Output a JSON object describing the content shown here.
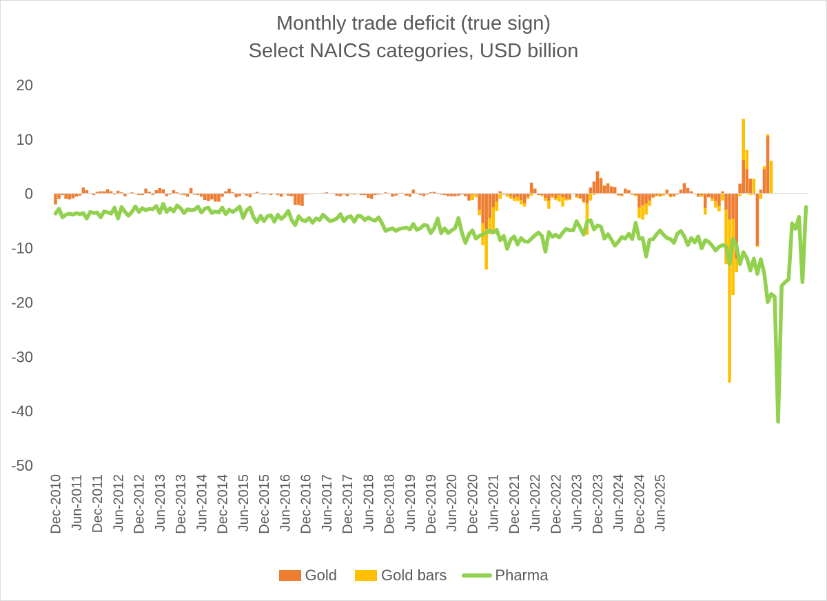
{
  "chart_data": {
    "type": "bar+line",
    "title": "Monthly trade deficit (true sign)",
    "subtitle": "Select NAICS categories, USD billion",
    "ylim": [
      -50,
      20
    ],
    "yticks": [
      20,
      10,
      0,
      -10,
      -20,
      -30,
      -40,
      -50
    ],
    "start_month": "Dec-2010",
    "x_tick_labels": [
      "Dec-2010",
      "Jun-2011",
      "Dec-2011",
      "Jun-2012",
      "Dec-2012",
      "Jun-2013",
      "Dec-2013",
      "Jun-2014",
      "Dec-2014",
      "Jun-2015",
      "Dec-2015",
      "Jun-2016",
      "Dec-2016",
      "Jun-2017",
      "Dec-2017",
      "Jun-2018",
      "Dec-2018",
      "Jun-2019",
      "Dec-2019",
      "Jun-2020",
      "Dec-2020",
      "Jun-2021",
      "Dec-2021",
      "Jun-2022",
      "Dec-2022",
      "Jun-2023",
      "Dec-2023",
      "Jun-2024",
      "Dec-2024",
      "Jun-2025"
    ],
    "legend": [
      {
        "name": "Gold",
        "color": "#ed7d31",
        "kind": "bar"
      },
      {
        "name": "Gold bars",
        "color": "#ffc000",
        "kind": "bar"
      },
      {
        "name": "Pharma",
        "color": "#92d050",
        "kind": "line"
      }
    ],
    "series": [
      {
        "name": "Gold",
        "values": [
          -2,
          -1,
          -0.3,
          -1,
          -1.1,
          -0.9,
          -0.6,
          -0.4,
          1.1,
          0.6,
          -0.1,
          -0.3,
          0.3,
          0.4,
          0.4,
          0.8,
          0.4,
          -0.2,
          0.5,
          0.2,
          -0.5,
          -0.1,
          0.2,
          -0.1,
          -0.3,
          -0.3,
          0.9,
          0.3,
          -0.3,
          0.6,
          1,
          0.8,
          -0.5,
          -0.2,
          0.6,
          0.2,
          -0.2,
          -0.3,
          -0.6,
          1,
          -0.2,
          -0.3,
          -0.6,
          -1.2,
          -1.4,
          -1.1,
          -1.5,
          -1.5,
          -0.6,
          0.4,
          0.9,
          0.2,
          -0.7,
          -0.5,
          0.1,
          -0.4,
          -0.7,
          0.1,
          0.3,
          -0.1,
          -0.2,
          -0.1,
          -0.3,
          -0.1,
          -0.3,
          -0.6,
          -0.1,
          -0.4,
          -0.5,
          -2.1,
          -2.1,
          -2.3,
          -0.2,
          -0.1,
          -0.1,
          0,
          0,
          0.1,
          0.2,
          0,
          -0.1,
          -0.4,
          -0.5,
          -0.2,
          -0.5,
          0.1,
          -0.2,
          -0.1,
          -0.3,
          -0.3,
          -0.8,
          -1,
          -0.3,
          -0.2,
          -0.1,
          0.2,
          0.1,
          -0.6,
          -0.4,
          0.1,
          0.1,
          -0.4,
          -0.6,
          0.7,
          0.1,
          -0.3,
          -0.5,
          -0.2,
          0.2,
          0.3,
          0.1,
          -0.2,
          -0.3,
          -0.5,
          -0.5,
          -0.5,
          -0.4,
          -0.2,
          -0.5,
          -1.3,
          -0.2,
          -0.2,
          -3,
          -5.5,
          -6.5,
          -4.5,
          -2.5,
          -1.5,
          0.4,
          -0.2,
          -0.2,
          -0.5,
          -0.8,
          -0.6,
          -1.2,
          -1.8,
          -0.7,
          2,
          0.9,
          -0.3,
          -0.3,
          -0.8,
          -1.3,
          -0.5,
          -0.9,
          -0.3,
          -0.7,
          -1,
          -1,
          -0.1,
          -0.5,
          -0.9,
          -1.5,
          -1.8,
          1.1,
          2.2,
          4.1,
          2.8,
          1.4,
          1.8,
          1.3,
          1.2,
          -0.3,
          -0.4,
          0.9,
          0.6,
          -0.2,
          -0.3,
          -2.6,
          -2.2,
          -1.9,
          -1.3,
          -0.7,
          -0.4,
          -0.4,
          -0.2,
          0.7,
          -0.5,
          -0.5,
          -0.2,
          0.7,
          1.9,
          1,
          0.4,
          -0.1,
          -0.6,
          -0.3,
          -2.7,
          -0.7,
          -0.9,
          -1.4,
          -2.3,
          0.4,
          -3,
          -4.8,
          -4.7,
          -12,
          1.8,
          6.2,
          4.5,
          2.7,
          -0.2,
          -9.6,
          0.7,
          4.5,
          10.5
        ]
      },
      {
        "name": "Gold bars",
        "values": [
          0,
          0,
          0,
          0,
          0,
          0,
          0,
          0,
          0,
          0,
          0,
          0,
          0,
          0,
          0,
          0,
          0,
          0,
          0,
          0,
          0,
          0,
          0,
          0,
          0,
          0,
          0,
          0,
          0,
          0,
          0,
          0,
          0,
          0,
          0,
          0,
          0,
          0,
          0,
          0,
          0,
          0,
          0,
          0,
          0,
          0,
          0,
          0,
          0,
          0,
          0,
          0,
          0,
          0,
          0,
          0,
          0,
          0,
          0,
          0,
          0,
          0,
          0,
          0,
          0,
          0,
          0,
          0,
          0,
          0,
          0,
          0,
          0,
          0,
          0,
          0,
          0,
          0,
          0,
          0,
          0,
          0,
          0,
          0,
          0,
          0,
          0,
          0,
          0,
          0,
          0,
          0,
          0,
          0,
          0,
          0,
          0,
          0,
          0,
          0,
          0,
          0,
          0,
          0,
          0,
          0,
          0,
          0,
          0,
          0,
          0,
          0,
          0,
          0,
          0,
          0,
          0,
          0,
          0,
          0,
          -1,
          -0.5,
          -1,
          -4,
          -7.5,
          -3,
          -5,
          -1.7,
          -1,
          0,
          -0.4,
          -0.5,
          -0.6,
          -0.8,
          -0.8,
          -0.6,
          -0.3,
          -0.4,
          0,
          0,
          -0.2,
          -0.6,
          -1.5,
          -0.3,
          -0.3,
          -1.2,
          -1.7,
          -0.3,
          -0.2,
          0,
          -0.3,
          -0.1,
          -0.2,
          -5.8,
          -1.3,
          -0.3,
          0,
          0.1,
          0.1,
          0.1,
          -0.1,
          0,
          -0.1,
          -0.1,
          0,
          0,
          -0.1,
          -0.2,
          -1.9,
          -2.6,
          -2,
          -1,
          -0.1,
          -0.1,
          -0.2,
          -0.2,
          -0.2,
          -0.2,
          -0.1,
          0,
          0,
          0,
          0,
          0,
          0,
          0.1,
          -0.3,
          -1.2,
          0.1,
          -0.5,
          -1.2,
          -1,
          -1.3,
          -10,
          -30,
          -14,
          -2.5,
          -0.5,
          7.5,
          3.5,
          -0.3,
          2.7,
          -0.2,
          -1,
          0.5,
          0.4,
          6
        ]
      },
      {
        "name": "Pharma",
        "values": [
          -3.7,
          -2.8,
          -4.4,
          -3.9,
          -3.7,
          -3.9,
          -3.6,
          -3.8,
          -3.6,
          -4.6,
          -3.4,
          -3.6,
          -3.5,
          -4.4,
          -3.3,
          -3.5,
          -3.7,
          -2.6,
          -4.6,
          -2.5,
          -3.4,
          -4.1,
          -3.4,
          -2.4,
          -3.4,
          -2.7,
          -3.1,
          -2.8,
          -2.9,
          -2.3,
          -3.6,
          -1.9,
          -3.4,
          -2.7,
          -3.3,
          -2.2,
          -2.7,
          -3.6,
          -2.9,
          -3.1,
          -3,
          -2.4,
          -3.5,
          -2.8,
          -2.6,
          -3.6,
          -3.3,
          -3.5,
          -2.6,
          -3.8,
          -3,
          -3.4,
          -3,
          -2.4,
          -4.5,
          -3.1,
          -2.6,
          -4.4,
          -5.3,
          -4.1,
          -5.1,
          -4.2,
          -4,
          -5.2,
          -3.9,
          -4.7,
          -4.1,
          -3.2,
          -4.9,
          -5.8,
          -4.2,
          -4.9,
          -5.1,
          -4.5,
          -5.4,
          -4.6,
          -4.9,
          -3.9,
          -4.5,
          -5.1,
          -4.9,
          -4.6,
          -3.8,
          -5.1,
          -4.4,
          -4.2,
          -5.2,
          -4.1,
          -4.2,
          -4.9,
          -4.4,
          -4.8,
          -5,
          -4.4,
          -5.5,
          -6.9,
          -6.6,
          -6.4,
          -6.9,
          -6.5,
          -6.4,
          -6.3,
          -6.6,
          -5.6,
          -6.7,
          -6.4,
          -5.8,
          -5.9,
          -7.3,
          -6.4,
          -4.6,
          -7.3,
          -6.4,
          -7.3,
          -6.8,
          -6.4,
          -4.5,
          -7.3,
          -9.1,
          -7.5,
          -6.8,
          -8.3,
          -7.8,
          -7.5,
          -7.1,
          -6.8,
          -7.2,
          -6.7,
          -8.6,
          -7.8,
          -10.2,
          -8.5,
          -7.9,
          -9.4,
          -8.2,
          -8.8,
          -8.9,
          -8.3,
          -7.7,
          -7.2,
          -7.8,
          -10.7,
          -7.1,
          -8,
          -7.6,
          -8.1,
          -7.2,
          -6.5,
          -6.8,
          -6.8,
          -5.1,
          -6.3,
          -7.6,
          -5.2,
          -4.9,
          -6.6,
          -5.9,
          -6.1,
          -8.3,
          -7.5,
          -8.5,
          -9.6,
          -8.9,
          -8,
          -8.3,
          -7.4,
          -8.4,
          -5.4,
          -8.3,
          -8.2,
          -11.6,
          -8.5,
          -8.4,
          -7.5,
          -6.8,
          -7.6,
          -8.2,
          -8.4,
          -9.1,
          -7.4,
          -6.9,
          -7.9,
          -9.5,
          -8.2,
          -9,
          -7.9,
          -10.1,
          -8.6,
          -8.9,
          -9.6,
          -10.5,
          -9.8,
          -9.5,
          -9.7,
          -13,
          -8.3,
          -9.6,
          -13,
          -10.8,
          -11.9,
          -14.2,
          -12,
          -14.8,
          -12.1,
          -14.7,
          -20,
          -18.5,
          -19,
          -42,
          -17,
          -16.3,
          -15.8,
          -5.5,
          -6.5,
          -4.3,
          -16.3,
          -2.5
        ]
      }
    ]
  }
}
